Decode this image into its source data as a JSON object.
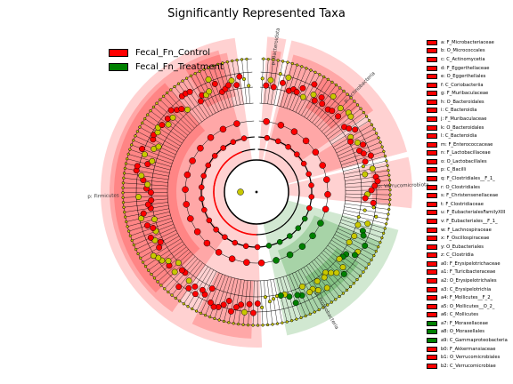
{
  "chart_data": {
    "type": "cladogram",
    "title": "Significantly Represented Taxa",
    "groups": [
      {
        "name": "Fecal_Fn_Control",
        "color": "#ff0000"
      },
      {
        "name": "Fecal_Fn_Treatment",
        "color": "#008000"
      }
    ],
    "clade_labels": [
      {
        "text": "p: Bacteroidota",
        "group": "Fecal_Fn_Control"
      },
      {
        "text": "p: Firmicutes",
        "group": "Fecal_Fn_Control"
      },
      {
        "text": "p: Proteobacteria",
        "group": "Fecal_Fn_Treatment"
      },
      {
        "text": "p: Actinobacteria",
        "group": "Fecal_Fn_Control"
      },
      {
        "text": "p: Verrucomicrobiota",
        "group": "Fecal_Fn_Control"
      }
    ],
    "taxa": [
      {
        "code": "a",
        "name": "F_Microbacteriaceae",
        "group": "Fecal_Fn_Control"
      },
      {
        "code": "b",
        "name": "O_Micrococcales",
        "group": "Fecal_Fn_Control"
      },
      {
        "code": "c",
        "name": "C_Actinomycetia",
        "group": "Fecal_Fn_Control"
      },
      {
        "code": "d",
        "name": "F_Eggerthellaceae",
        "group": "Fecal_Fn_Control"
      },
      {
        "code": "e",
        "name": "O_Eggerthellales",
        "group": "Fecal_Fn_Control"
      },
      {
        "code": "f",
        "name": "C_Coriobacteriia",
        "group": "Fecal_Fn_Control"
      },
      {
        "code": "g",
        "name": "F_Muribaculaceae",
        "group": "Fecal_Fn_Control"
      },
      {
        "code": "h",
        "name": "O_Bacteroidales",
        "group": "Fecal_Fn_Control"
      },
      {
        "code": "i",
        "name": "C_Bacteroidia",
        "group": "Fecal_Fn_Control"
      },
      {
        "code": "j",
        "name": "F_Muribaculaceae",
        "group": "Fecal_Fn_Control"
      },
      {
        "code": "k",
        "name": "O_Bacteroidales",
        "group": "Fecal_Fn_Control"
      },
      {
        "code": "l",
        "name": "C_Bacteroidia",
        "group": "Fecal_Fn_Control"
      },
      {
        "code": "m",
        "name": "F_Enterococcaceae",
        "group": "Fecal_Fn_Control"
      },
      {
        "code": "n",
        "name": "F_Lactobacillaceae",
        "group": "Fecal_Fn_Control"
      },
      {
        "code": "o",
        "name": "O_Lactobacillales",
        "group": "Fecal_Fn_Control"
      },
      {
        "code": "p",
        "name": "C_Bacilli",
        "group": "Fecal_Fn_Control"
      },
      {
        "code": "q",
        "name": "F_Clostridiales__F_1_",
        "group": "Fecal_Fn_Control"
      },
      {
        "code": "r",
        "name": "O_Clostridiales",
        "group": "Fecal_Fn_Control"
      },
      {
        "code": "s",
        "name": "F_Christensenellaceae",
        "group": "Fecal_Fn_Control"
      },
      {
        "code": "t",
        "name": "F_Clostridiaceae",
        "group": "Fecal_Fn_Control"
      },
      {
        "code": "u",
        "name": "F_EubacterialesFamilyXIII",
        "group": "Fecal_Fn_Control"
      },
      {
        "code": "v",
        "name": "F_Eubacteriales__F_1_",
        "group": "Fecal_Fn_Control"
      },
      {
        "code": "w",
        "name": "F_Lachnospiraceae",
        "group": "Fecal_Fn_Control"
      },
      {
        "code": "x",
        "name": "F_Oscillospiraceae",
        "group": "Fecal_Fn_Control"
      },
      {
        "code": "y",
        "name": "O_Eubacteriales",
        "group": "Fecal_Fn_Control"
      },
      {
        "code": "z",
        "name": "C_Clostridia",
        "group": "Fecal_Fn_Control"
      },
      {
        "code": "a0",
        "name": "F_Erysipelotrichaceae",
        "group": "Fecal_Fn_Control"
      },
      {
        "code": "a1",
        "name": "F_Turicibacteraceae",
        "group": "Fecal_Fn_Control"
      },
      {
        "code": "a2",
        "name": "O_Erysipelotrichales",
        "group": "Fecal_Fn_Control"
      },
      {
        "code": "a3",
        "name": "C_Erysipelotrichia",
        "group": "Fecal_Fn_Control"
      },
      {
        "code": "a4",
        "name": "F_Mollicutes__F_2_",
        "group": "Fecal_Fn_Control"
      },
      {
        "code": "a5",
        "name": "O_Mollicutes__O_2_",
        "group": "Fecal_Fn_Control"
      },
      {
        "code": "a6",
        "name": "C_Mollicutes",
        "group": "Fecal_Fn_Control"
      },
      {
        "code": "a7",
        "name": "F_Moraxellaceae",
        "group": "Fecal_Fn_Treatment"
      },
      {
        "code": "a8",
        "name": "O_Moraxellales",
        "group": "Fecal_Fn_Treatment"
      },
      {
        "code": "a9",
        "name": "C_Gammaproteobacteria",
        "group": "Fecal_Fn_Treatment"
      },
      {
        "code": "b0",
        "name": "F_Akkermansiaceae",
        "group": "Fecal_Fn_Control"
      },
      {
        "code": "b1",
        "name": "O_Verrucomicrobiales",
        "group": "Fecal_Fn_Control"
      },
      {
        "code": "b2",
        "name": "C_Verrucomicrobiae",
        "group": "Fecal_Fn_Control"
      }
    ]
  }
}
